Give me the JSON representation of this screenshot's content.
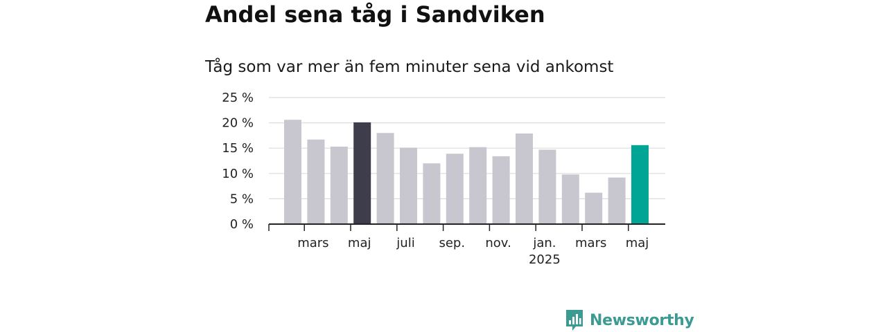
{
  "title": "Andel sena tåg i Sandviken",
  "subtitle": "Tåg som var mer än fem minuter sena vid ankomst",
  "brand": {
    "name": "Newsworthy",
    "color": "#3b9a91",
    "icon": "newsworthy-logo-icon"
  },
  "colors": {
    "bar_default": "#c8c7cf",
    "bar_highlight_dark": "#3d3d4b",
    "bar_highlight_teal": "#00a596",
    "grid": "#dcdcdc",
    "axis": "#222222"
  },
  "chart_data": {
    "type": "bar",
    "unit": "%",
    "ylim": [
      0,
      25
    ],
    "yticks": [
      0,
      5,
      10,
      15,
      20,
      25
    ],
    "ytick_labels": [
      "0 %",
      "5 %",
      "10 %",
      "15 %",
      "20 %",
      "25 %"
    ],
    "grid": true,
    "categories": [
      "2024-02",
      "2024-03",
      "2024-04",
      "2024-05",
      "2024-06",
      "2024-07",
      "2024-08",
      "2024-09",
      "2024-10",
      "2024-11",
      "2024-12",
      "2025-01",
      "2025-02",
      "2025-03",
      "2025-04",
      "2025-05"
    ],
    "values": [
      20.6,
      16.7,
      15.3,
      20.1,
      18.0,
      15.1,
      12.0,
      13.9,
      15.2,
      13.4,
      17.9,
      14.7,
      9.8,
      6.2,
      9.2,
      15.6
    ],
    "highlight": [
      "none",
      "none",
      "none",
      "dark",
      "none",
      "none",
      "none",
      "none",
      "none",
      "none",
      "none",
      "none",
      "none",
      "none",
      "none",
      "teal"
    ],
    "xtick_labels": [
      {
        "index": 1,
        "label": "mars",
        "sublabel": ""
      },
      {
        "index": 3,
        "label": "maj",
        "sublabel": ""
      },
      {
        "index": 5,
        "label": "juli",
        "sublabel": ""
      },
      {
        "index": 7,
        "label": "sep.",
        "sublabel": ""
      },
      {
        "index": 9,
        "label": "nov.",
        "sublabel": ""
      },
      {
        "index": 11,
        "label": "jan.",
        "sublabel": "2025"
      },
      {
        "index": 13,
        "label": "mars",
        "sublabel": ""
      },
      {
        "index": 15,
        "label": "maj",
        "sublabel": ""
      }
    ],
    "xlabel": "",
    "ylabel": ""
  }
}
